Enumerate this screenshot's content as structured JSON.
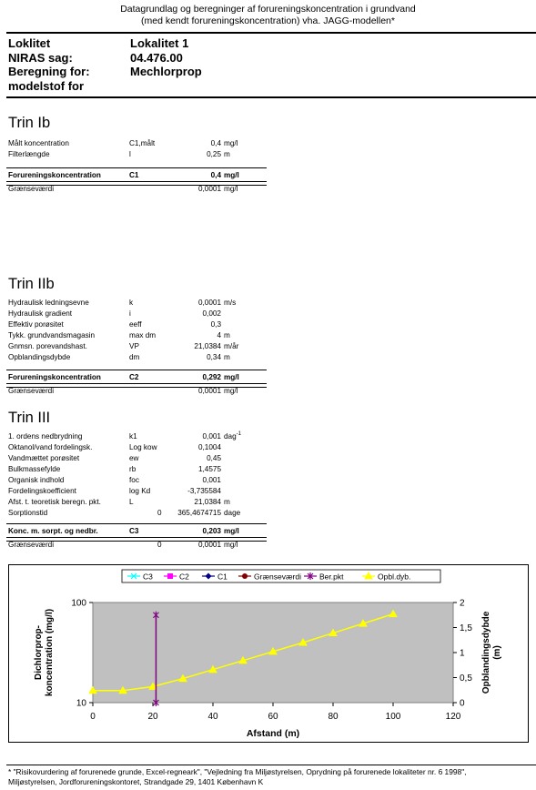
{
  "header": {
    "line1": "Datagrundlag og beregninger af forureningskoncentration i grundvand",
    "line2": "(med kendt forureningskoncentration) vha. JAGG-modellen*"
  },
  "info": {
    "label1": "Loklitet",
    "value1": "Lokalitet 1",
    "label2": "NIRAS sag:",
    "value2": "04.476.00",
    "label3": "Beregning for:",
    "value3": "Mechlorprop",
    "label4": "modelstof for"
  },
  "trin1": {
    "title": "Trin Ib",
    "rows": [
      {
        "label": "Målt koncentration",
        "sym": "C1,målt",
        "val": "0,4",
        "unit": "mg/l"
      },
      {
        "label": "Filterlængde",
        "sym": "l",
        "val": "0,25",
        "unit": "m"
      }
    ],
    "total": {
      "label": "Forureningskoncentration",
      "sym": "C1",
      "val": "0,4",
      "unit": "mg/l"
    },
    "limit": {
      "label": "Grænseværdi",
      "val": "0,0001",
      "unit": "mg/l"
    }
  },
  "trin2": {
    "title": "Trin IIb",
    "rows": [
      {
        "label": "Hydraulisk ledningsevne",
        "sym": "k",
        "val": "0,0001",
        "unit": "m/s"
      },
      {
        "label": "Hydraulisk gradient",
        "sym": "i",
        "val": "0,002",
        "unit": ""
      },
      {
        "label": "Effektiv porøsitet",
        "sym": "eeff",
        "val": "0,3",
        "unit": ""
      },
      {
        "label": "Tykk. grundvandsmagasin",
        "sym": "max dm",
        "val": "4",
        "unit": "m"
      },
      {
        "label": "Gnmsn. porevandshast.",
        "sym": "VP",
        "val": "21,0384",
        "unit": "m/år"
      },
      {
        "label": "Opblandingsdybde",
        "sym": "dm",
        "val": "0,34",
        "unit": "m"
      }
    ],
    "total": {
      "label": "Forureningskoncentration",
      "sym": "C2",
      "val": "0,292",
      "unit": "mg/l"
    },
    "limit": {
      "label": "Grænseværdi",
      "val": "0,0001",
      "unit": "mg/l"
    }
  },
  "trin3": {
    "title": "Trin III",
    "rows": [
      {
        "label": "1. ordens nedbrydning",
        "sym": "k1",
        "zero": "",
        "val": "0,001",
        "unit": "dag",
        "sup": "-1"
      },
      {
        "label": "Oktanol/vand fordelingsk.",
        "sym": "Log kow",
        "zero": "",
        "val": "0,1004",
        "unit": "",
        "sup": ""
      },
      {
        "label": "Vandmættet porøsitet",
        "sym": "ew",
        "zero": "",
        "val": "0,45",
        "unit": "",
        "sup": ""
      },
      {
        "label": "Bulkmassefylde",
        "sym": "rb",
        "zero": "",
        "val": "1,4575",
        "unit": "",
        "sup": ""
      },
      {
        "label": "Organisk indhold",
        "sym": "foc",
        "zero": "",
        "val": "0,001",
        "unit": "",
        "sup": ""
      },
      {
        "label": "Fordelingskoefficient",
        "sym": "log Kd",
        "zero": "",
        "val": "-3,735584",
        "unit": "",
        "sup": ""
      },
      {
        "label": "Afst. t. teoretisk beregn. pkt.",
        "sym": "L",
        "zero": "",
        "val": "21,0384",
        "unit": "m",
        "sup": ""
      },
      {
        "label": "Sorptionstid",
        "sym": "",
        "zero": "0",
        "val": "365,4674715",
        "unit": "dage",
        "sup": ""
      }
    ],
    "total": {
      "label": "Konc. m. sorpt. og nedbr.",
      "sym": "C3",
      "val": "0,203",
      "unit": "mg/l"
    },
    "limit": {
      "label": "Grænseværdi",
      "zero": "0",
      "val": "0,0001",
      "unit": "mg/l"
    }
  },
  "chart_data": {
    "type": "line",
    "xlabel": "Afstand (m)",
    "ylabel_left": "Dichlorprop-\nkoncentration (mg/l)",
    "ylabel_right": "Opblandingsdybde\n(m)",
    "x_ticks": [
      "0",
      "20",
      "40",
      "60",
      "80",
      "100",
      "120"
    ],
    "y_left_ticks": [
      "10",
      "100"
    ],
    "y_right_ticks": [
      "0",
      "0,5",
      "1",
      "1,5",
      "2"
    ],
    "xlim": [
      0,
      120
    ],
    "ylim_left": [
      10,
      100
    ],
    "ylim_right": [
      0,
      2
    ],
    "y_left_scale": "log",
    "grid": false,
    "plot_background": "#c0c0c0",
    "legend_position": "top",
    "legend": [
      {
        "name": "C3",
        "color": "#00ffff",
        "marker": "x"
      },
      {
        "name": "C2",
        "color": "#ff00ff",
        "marker": "square"
      },
      {
        "name": "C1",
        "color": "#000080",
        "marker": "diamond"
      },
      {
        "name": "Grænseværdi",
        "color": "#800000",
        "marker": "circle"
      },
      {
        "name": "Ber.pkt",
        "color": "#800080",
        "marker": "star"
      },
      {
        "name": "Opbl.dyb.",
        "color": "#ffff00",
        "marker": "triangle"
      }
    ],
    "series": [
      {
        "name": "Opbl.dyb.",
        "axis": "right",
        "color": "#ffff00",
        "x": [
          0,
          10,
          20,
          30,
          40,
          50,
          60,
          70,
          80,
          90,
          100
        ],
        "y": [
          0.24,
          0.24,
          0.32,
          0.48,
          0.66,
          0.84,
          1.02,
          1.2,
          1.39,
          1.58,
          1.77
        ]
      },
      {
        "name": "Ber.pkt",
        "axis": "left",
        "color": "#800080",
        "x": [
          21.04,
          21.04
        ],
        "y": [
          10,
          75
        ]
      }
    ]
  },
  "footnote": {
    "line1": "* \"Risikovurdering af forurenede grunde, Excel-regneark\", \"Vejledning fra Miljøstyrelsen, Oprydning på forurenede lokaliteter nr. 6 1998\",",
    "line2": "Miljøstyrelsen, Jordforureningskontoret, Strandgade 29, 1401 København K"
  }
}
